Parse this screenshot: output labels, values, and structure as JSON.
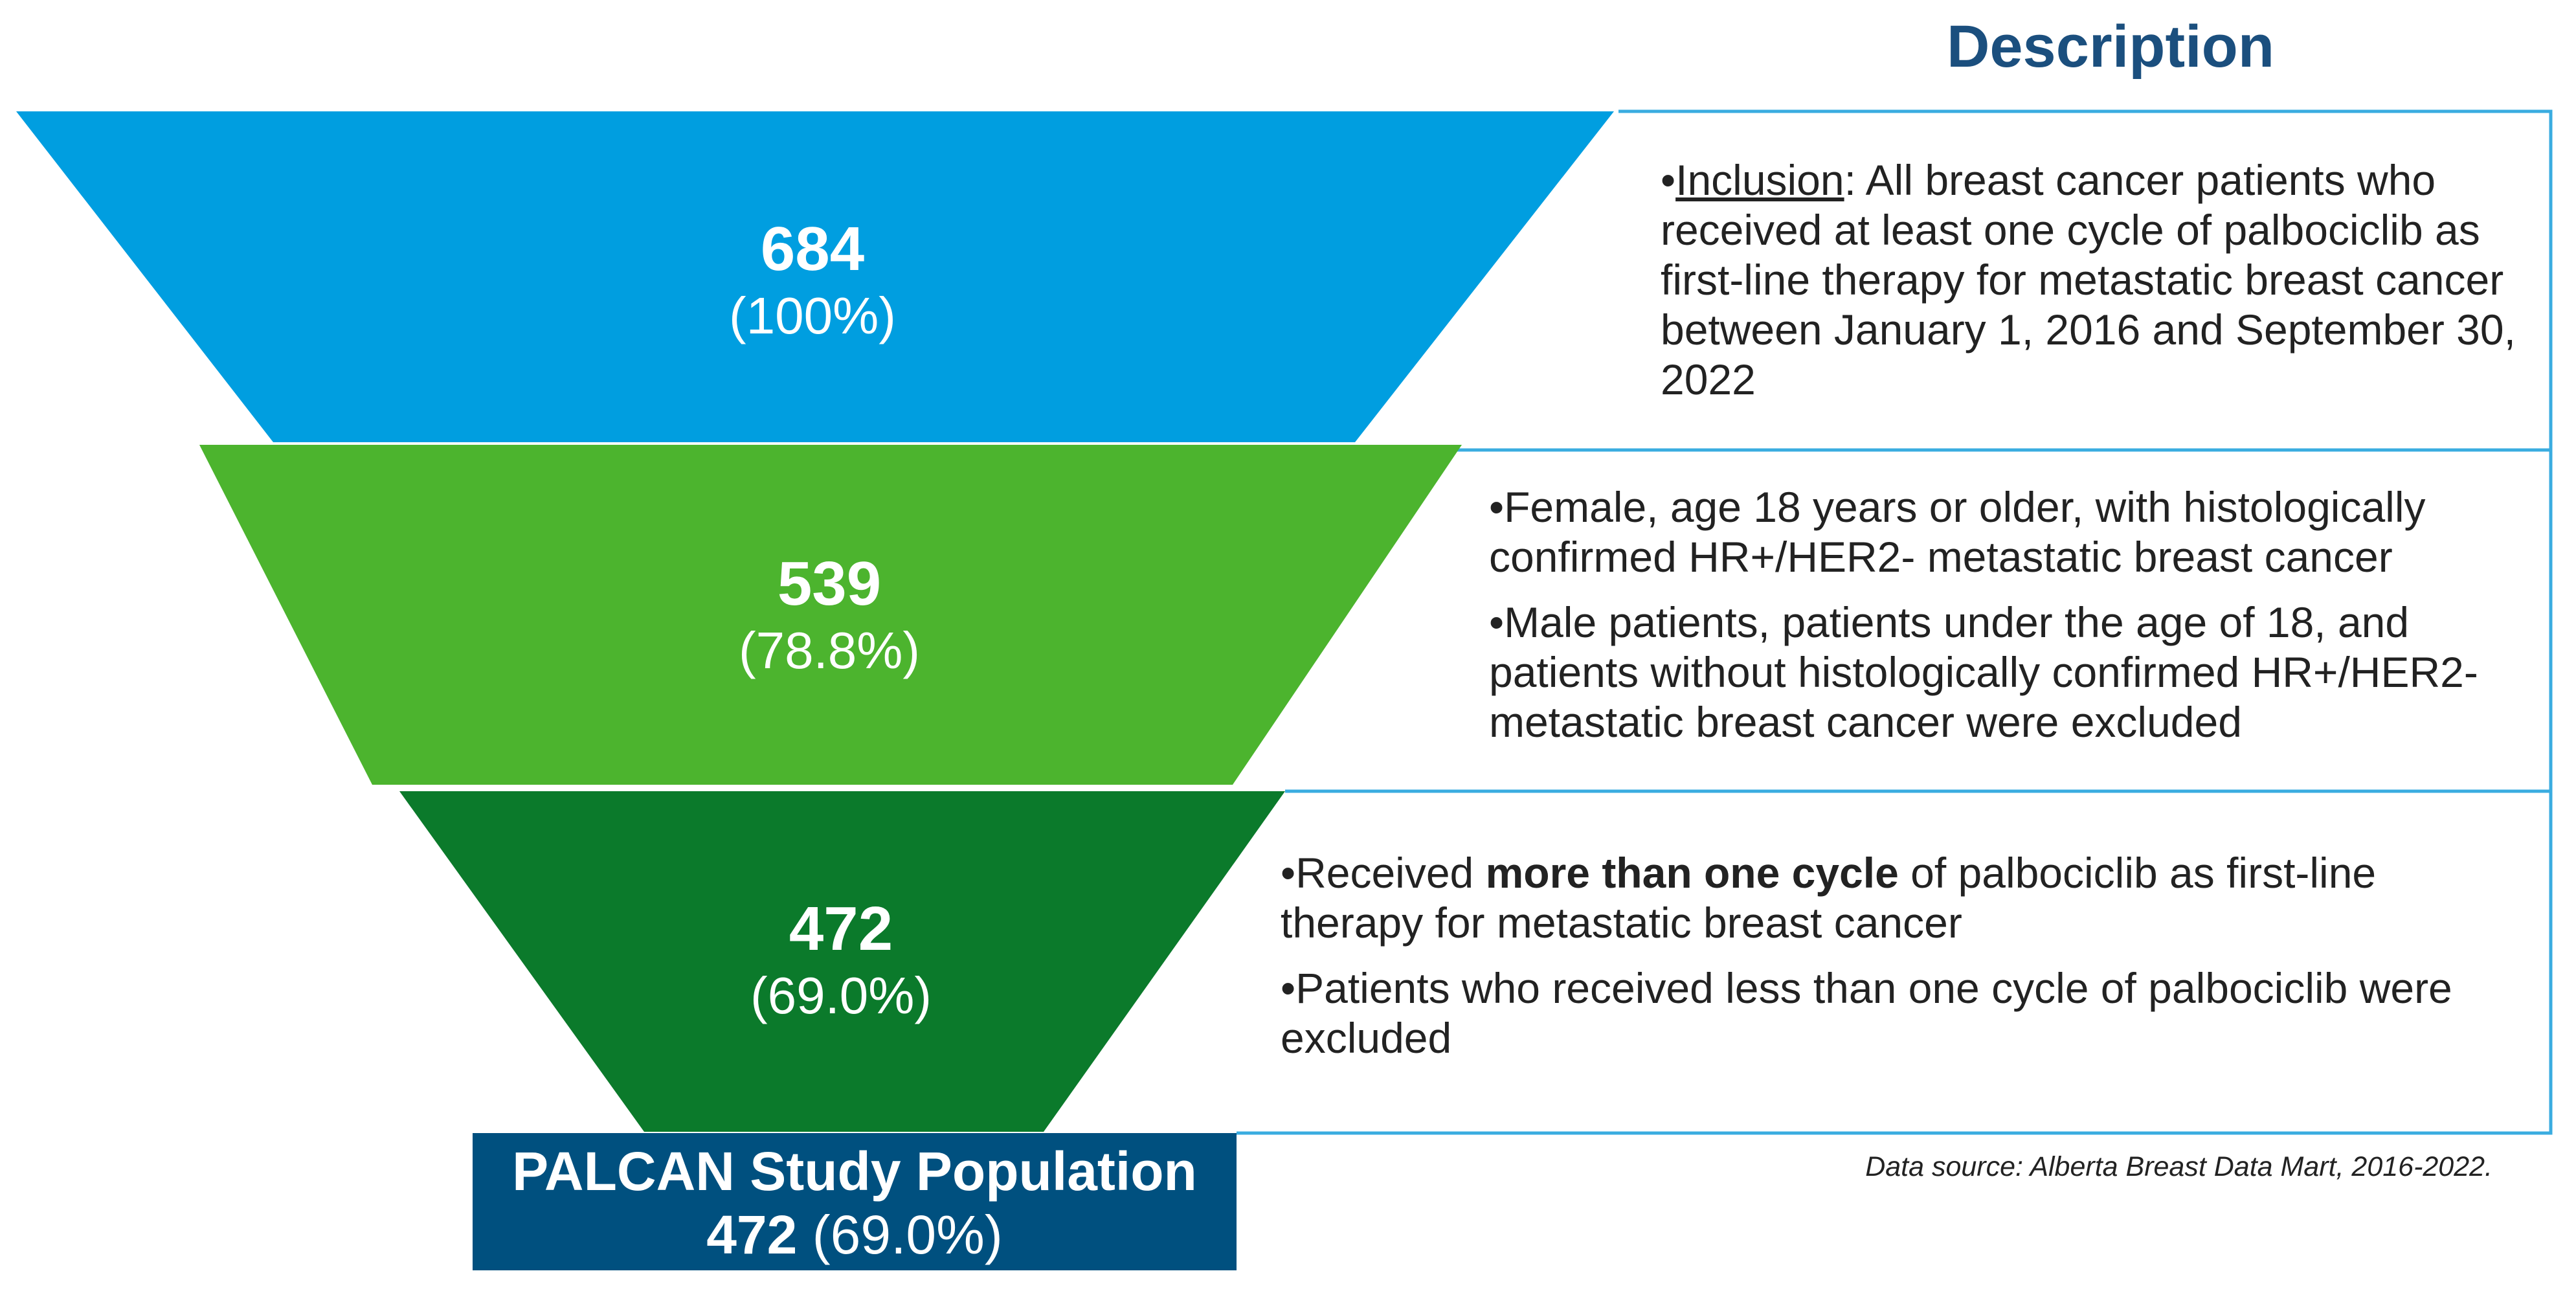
{
  "description_title": "Description",
  "colors": {
    "stage1": "#009ee0",
    "stage2": "#4cb42e",
    "stage3": "#0b7a2b",
    "result": "#00507f",
    "title": "#1b4f7e",
    "border": "#3aace0"
  },
  "stages": [
    {
      "count": "684",
      "percent": "(100%)",
      "description": {
        "bullet": "•",
        "label": "Inclusion",
        "text": ": All breast cancer patients who received at least one cycle of palbociclib as first-line therapy for metastatic breast cancer between January 1, 2016 and September 30, 2022"
      }
    },
    {
      "count": "539",
      "percent": "(78.8%)",
      "description": {
        "line1": "•Female, age 18 years or older, with histologically confirmed HR+/HER2- metastatic breast cancer",
        "line2": "•Male patients, patients under the age of 18, and patients without histologically confirmed HR+/HER2- metastatic breast cancer were excluded"
      }
    },
    {
      "count": "472",
      "percent": "(69.0%)",
      "description": {
        "prefix": "•Received ",
        "bold": "more than one cycle",
        "suffix": " of palbociclib as first-line therapy for metastatic breast cancer",
        "line2": "•Patients who received less than one cycle of palbociclib were excluded"
      }
    }
  ],
  "result": {
    "title": "PALCAN Study Population",
    "count": "472",
    "percent": " (69.0%)"
  },
  "data_source": "Data source: Alberta Breast Data Mart, 2016-2022."
}
